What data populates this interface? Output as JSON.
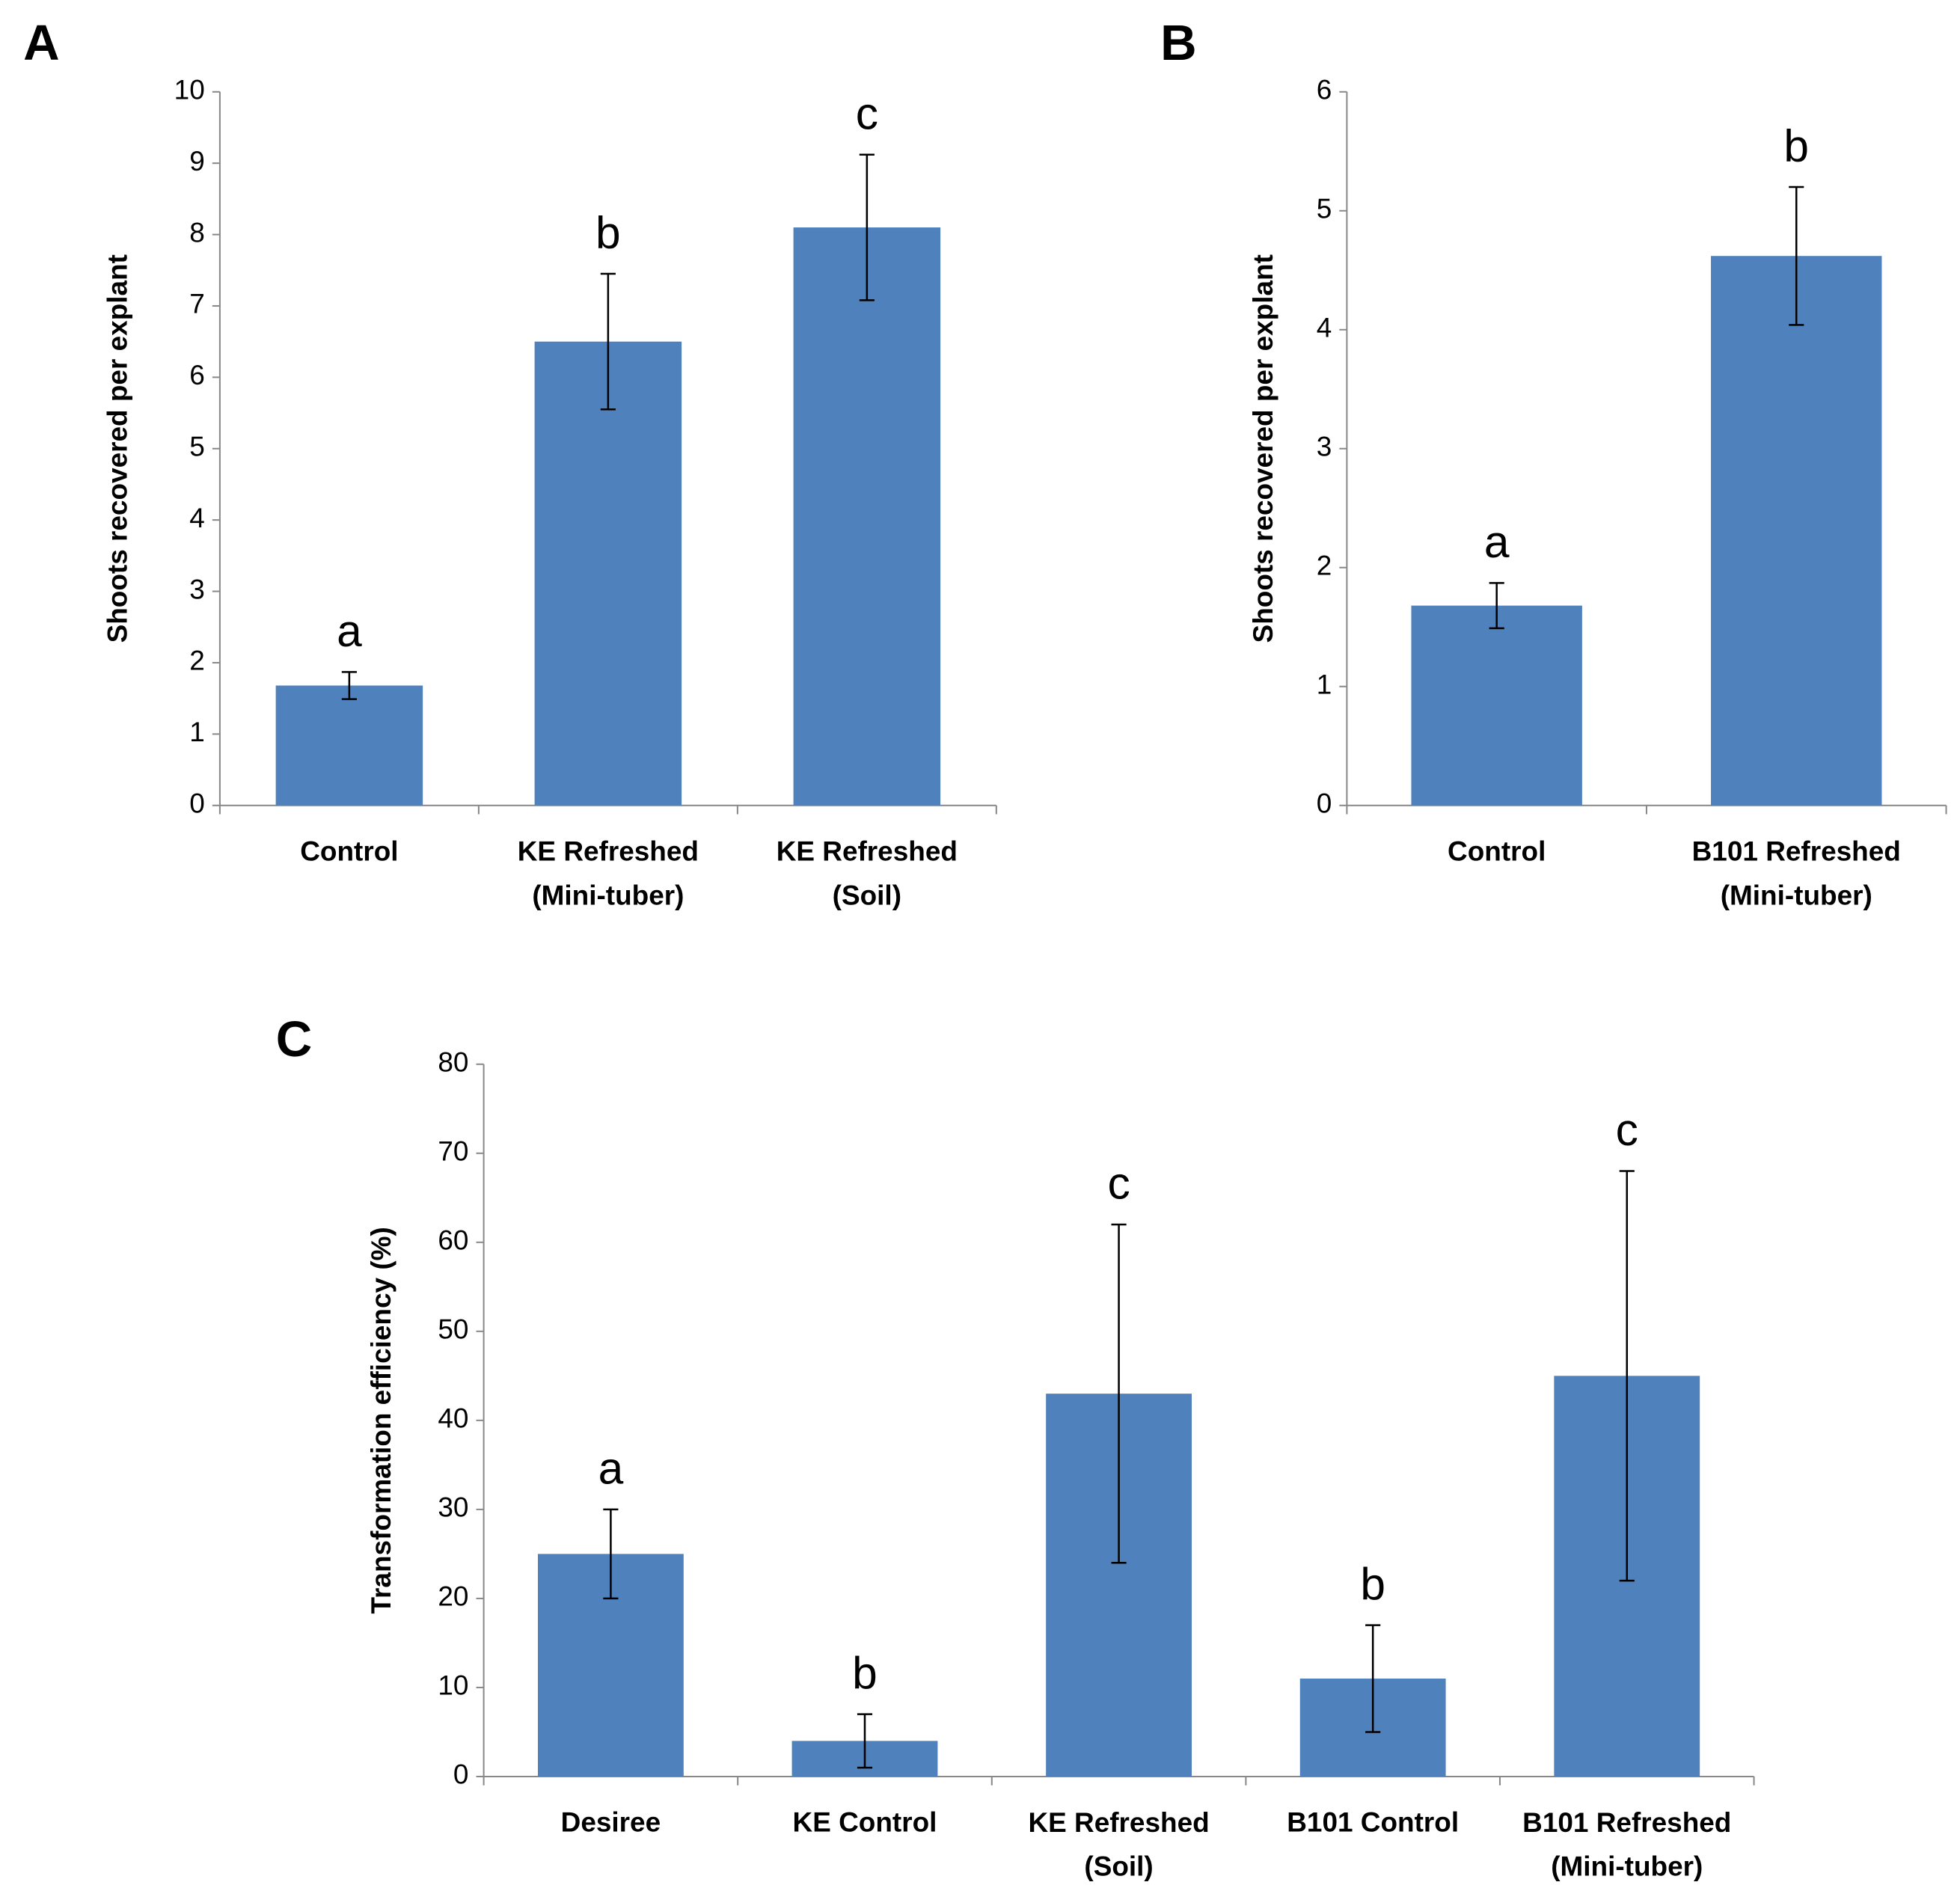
{
  "chart_data": [
    {
      "type": "bar",
      "panel": "A",
      "y_label": "Shoots recovered per explant",
      "categories": [
        "Control",
        "KE Refreshed\n(Mini-tuber)",
        "KE Refreshed\n(Soil)"
      ],
      "values": [
        1.68,
        6.5,
        8.1
      ],
      "errors": [
        0.19,
        0.95,
        1.02
      ],
      "annotations": [
        "a",
        "b",
        "c"
      ],
      "color": "#4f81bd",
      "ylim": [
        0,
        10
      ],
      "yticks": [
        0,
        1,
        2,
        3,
        4,
        5,
        6,
        7,
        8,
        9,
        10
      ]
    },
    {
      "type": "bar",
      "panel": "B",
      "y_label": "Shoots recovered per explant",
      "categories": [
        "Control",
        "B101 Refreshed\n(Mini-tuber)"
      ],
      "values": [
        1.68,
        4.62
      ],
      "errors": [
        0.19,
        0.58
      ],
      "annotations": [
        "a",
        "b"
      ],
      "color": "#4f81bd",
      "ylim": [
        0,
        6
      ],
      "yticks": [
        0,
        1,
        2,
        3,
        4,
        5,
        6
      ]
    },
    {
      "type": "bar",
      "panel": "C",
      "y_label": "Transformation efficiency (%)",
      "categories": [
        "Desiree",
        "KE Control",
        "KE Refreshed\n(Soil)",
        "B101 Control",
        "B101 Refreshed\n(Mini-tuber)"
      ],
      "values": [
        25,
        4,
        43,
        11,
        45
      ],
      "errors": [
        5,
        3,
        19,
        6,
        23
      ],
      "annotations": [
        "a",
        "b",
        "c",
        "b",
        "c"
      ],
      "color": "#4f81bd",
      "ylim": [
        0,
        80
      ],
      "yticks": [
        0,
        10,
        20,
        30,
        40,
        50,
        60,
        70,
        80
      ]
    }
  ]
}
